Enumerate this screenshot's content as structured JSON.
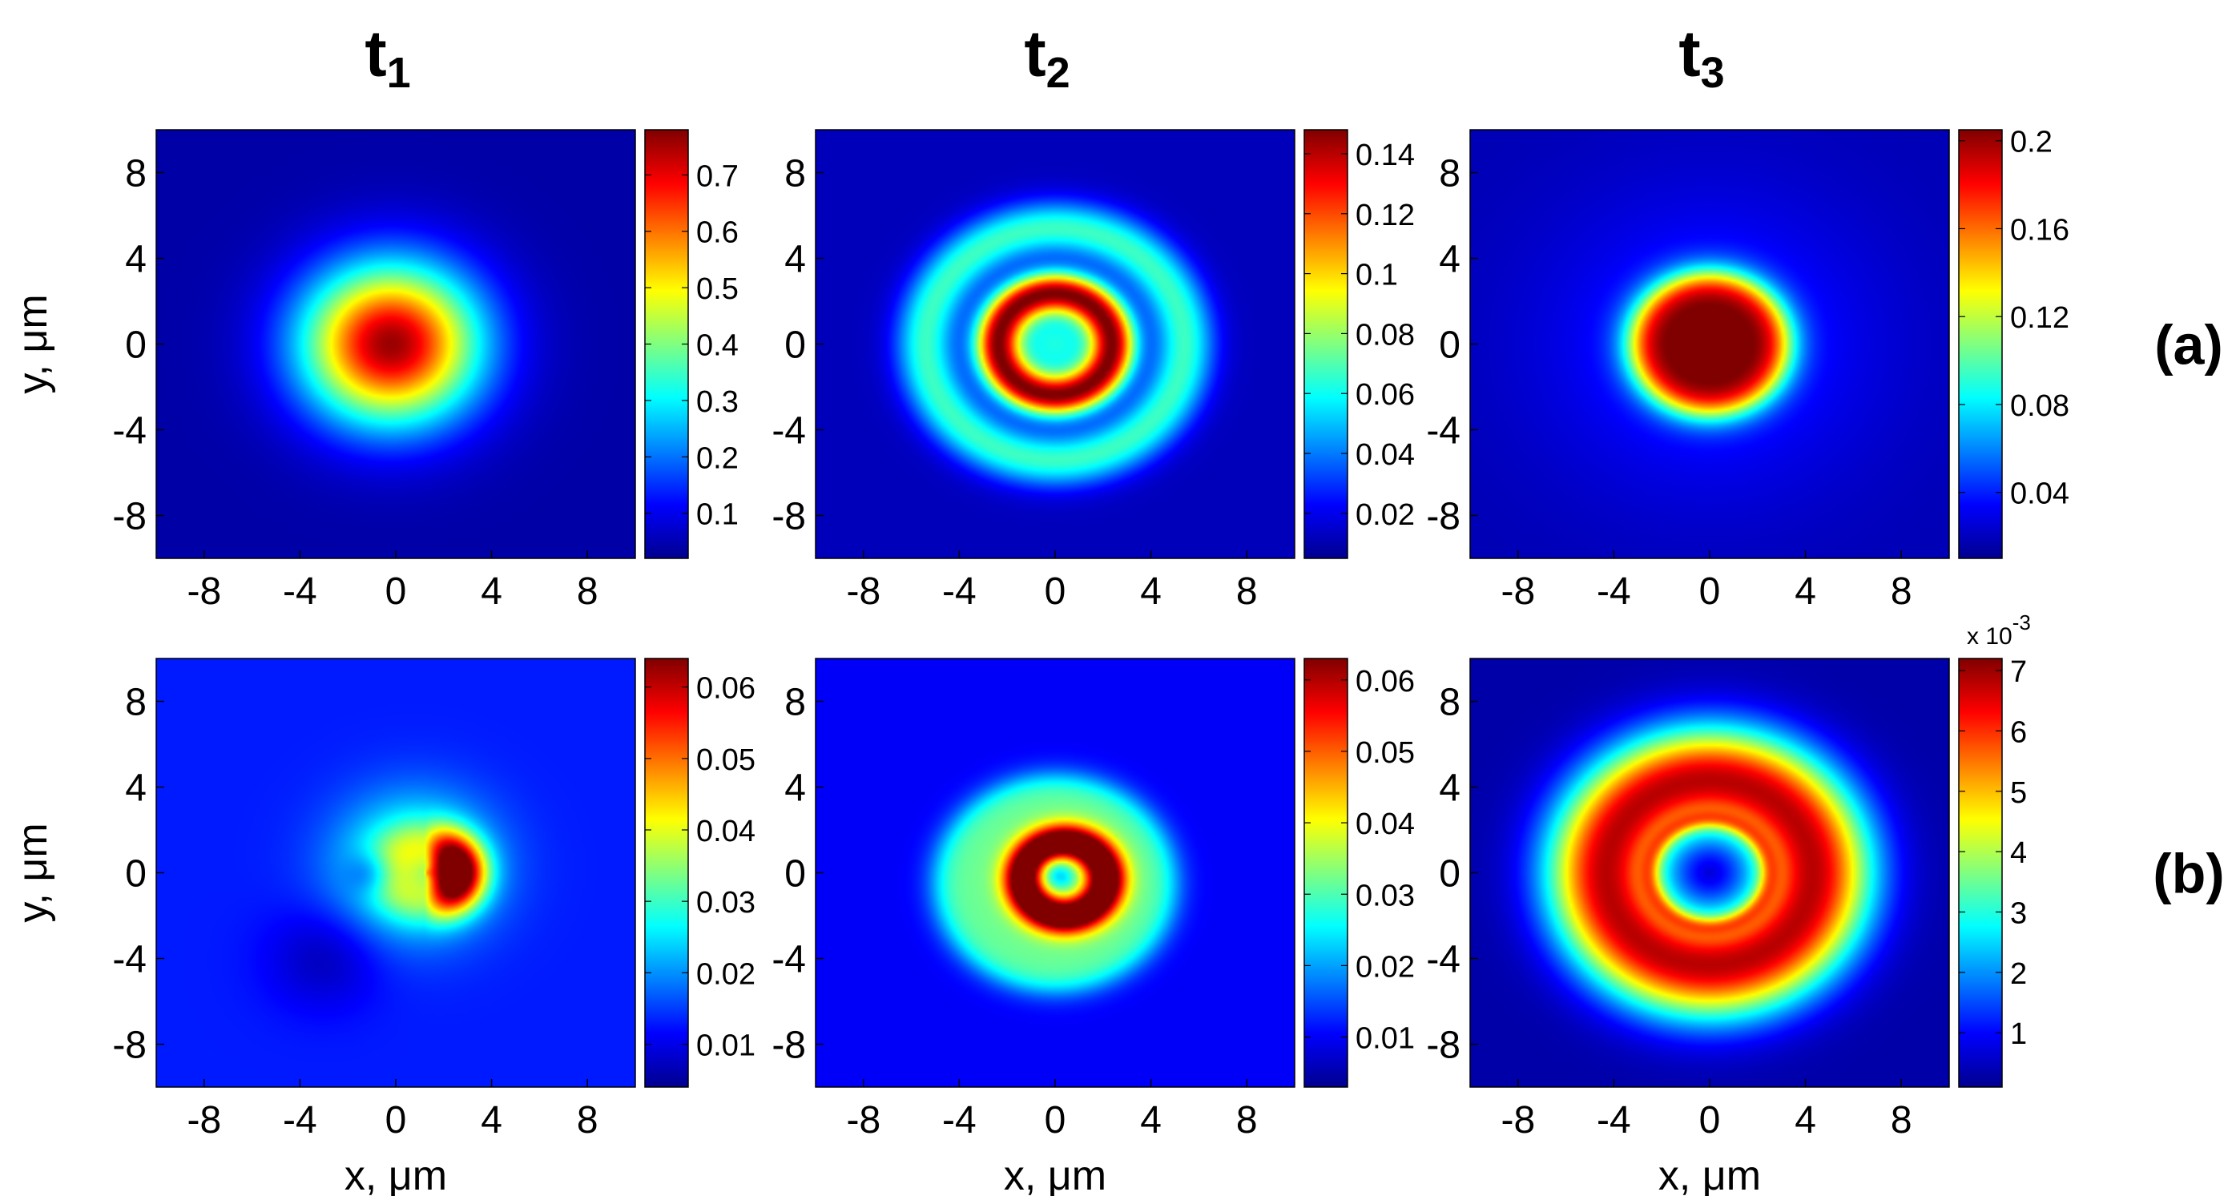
{
  "figure": {
    "column_titles": [
      {
        "base": "t",
        "sub": "1"
      },
      {
        "base": "t",
        "sub": "2"
      },
      {
        "base": "t",
        "sub": "3"
      }
    ],
    "row_labels": [
      "(a)",
      "(b)"
    ],
    "ylabel": "y, μm",
    "xlabel": "x, μm",
    "colorscale": [
      "#00008f",
      "#0000ff",
      "#0080ff",
      "#00ffff",
      "#80ff80",
      "#ffff00",
      "#ff8000",
      "#ff0000",
      "#800000"
    ]
  },
  "chart_data": [
    {
      "type": "heatmap",
      "row": "(a)",
      "column": "t1",
      "xlim": [
        -10,
        10
      ],
      "ylim": [
        -10,
        10
      ],
      "xticks": [
        -8,
        -4,
        0,
        4,
        8
      ],
      "yticks": [
        8,
        4,
        0,
        -4,
        -8
      ],
      "xticklabels": [
        "-8",
        "-4",
        "0",
        "4",
        "8"
      ],
      "yticklabels": [
        "8",
        "4",
        "0",
        "-4",
        "-8"
      ],
      "colorbar": {
        "min": 0.02,
        "max": 0.78,
        "ticks": [
          0.1,
          0.2,
          0.3,
          0.4,
          0.5,
          0.6,
          0.7
        ],
        "labels": [
          "0.1",
          "0.2",
          "0.3",
          "0.4",
          "0.5",
          "0.6",
          "0.7"
        ],
        "multiplier": ""
      },
      "background": 0.04,
      "features": [
        {
          "shape": "gaussian",
          "cx": -0.2,
          "cy": 0,
          "sigma": 2.6,
          "amp": 0.72
        }
      ],
      "show_xticklabels": true,
      "show_xlabel": false,
      "show_ylabel": true
    },
    {
      "type": "heatmap",
      "row": "(a)",
      "column": "t2",
      "xlim": [
        -10,
        10
      ],
      "ylim": [
        -10,
        10
      ],
      "xticks": [
        -8,
        -4,
        0,
        4,
        8
      ],
      "yticks": [
        8,
        4,
        0,
        -4,
        -8
      ],
      "xticklabels": [
        "-8",
        "-4",
        "0",
        "4",
        "8"
      ],
      "yticklabels": [
        "8",
        "4",
        "0",
        "-4",
        "-8"
      ],
      "colorbar": {
        "min": 0.005,
        "max": 0.148,
        "ticks": [
          0.02,
          0.04,
          0.06,
          0.08,
          0.1,
          0.12,
          0.14
        ],
        "labels": [
          "0.02",
          "0.04",
          "0.06",
          "0.08",
          "0.1",
          "0.12",
          "0.14"
        ],
        "multiplier": ""
      },
      "background": 0.012,
      "features": [
        {
          "shape": "gaussian",
          "cx": 0,
          "cy": 0,
          "sigma": 1.2,
          "amp": 0.05
        },
        {
          "shape": "ring",
          "cx": 0,
          "cy": 0,
          "radius": 2.4,
          "width": 0.7,
          "amp": 0.13
        },
        {
          "shape": "ring",
          "cx": 0,
          "cy": 0,
          "radius": 5.4,
          "width": 0.9,
          "amp": 0.055
        }
      ],
      "show_xticklabels": true,
      "show_xlabel": false,
      "show_ylabel": false
    },
    {
      "type": "heatmap",
      "row": "(a)",
      "column": "t3",
      "xlim": [
        -10,
        10
      ],
      "ylim": [
        -10,
        10
      ],
      "xticks": [
        -8,
        -4,
        0,
        4,
        8
      ],
      "yticks": [
        8,
        4,
        0,
        -4,
        -8
      ],
      "xticklabels": [
        "-8",
        "-4",
        "0",
        "4",
        "8"
      ],
      "yticklabels": [
        "8",
        "4",
        "0",
        "-4",
        "-8"
      ],
      "colorbar": {
        "min": 0.01,
        "max": 0.205,
        "ticks": [
          0.04,
          0.08,
          0.12,
          0.16,
          0.2
        ],
        "labels": [
          "0.04",
          "0.08",
          "0.12",
          "0.16",
          "0.2"
        ],
        "multiplier": ""
      },
      "background": 0.018,
      "features": [
        {
          "shape": "disk",
          "cx": 0,
          "cy": 0,
          "radius": 3.2,
          "edge": 1.2,
          "amp": 0.17
        },
        {
          "shape": "gaussian",
          "cx": 0,
          "cy": 0,
          "sigma": 0.45,
          "amp": 0.02
        },
        {
          "shape": "gaussian",
          "cx": 0,
          "cy": 0,
          "sigma": 4.8,
          "amp": 0.025
        }
      ],
      "show_xticklabels": true,
      "show_xlabel": false,
      "show_ylabel": false
    },
    {
      "type": "heatmap",
      "row": "(b)",
      "column": "t1",
      "xlim": [
        -10,
        10
      ],
      "ylim": [
        -10,
        10
      ],
      "xticks": [
        -8,
        -4,
        0,
        4,
        8
      ],
      "yticks": [
        8,
        4,
        0,
        -4,
        -8
      ],
      "xticklabels": [
        "-8",
        "-4",
        "0",
        "4",
        "8"
      ],
      "yticklabels": [
        "8",
        "4",
        "0",
        "-4",
        "-8"
      ],
      "colorbar": {
        "min": 0.004,
        "max": 0.064,
        "ticks": [
          0.01,
          0.02,
          0.03,
          0.04,
          0.05,
          0.06
        ],
        "labels": [
          "0.01",
          "0.02",
          "0.03",
          "0.04",
          "0.05",
          "0.06"
        ],
        "multiplier": ""
      },
      "background": 0.013,
      "features": [
        {
          "shape": "gaussian",
          "cx": 0.8,
          "cy": 0.3,
          "sigma": 2.2,
          "amp": 0.022
        },
        {
          "shape": "crescent",
          "cx": 1.2,
          "cy": 0,
          "radius": 1.4,
          "width": 0.8,
          "amp": 0.05
        },
        {
          "shape": "gaussian",
          "cx": -1.0,
          "cy": 0,
          "sigma": 0.7,
          "amp": -0.01
        },
        {
          "shape": "gaussian",
          "cx": -3.0,
          "cy": -4.0,
          "sigma": 1.6,
          "amp": -0.006
        }
      ],
      "show_xticklabels": true,
      "show_xlabel": true,
      "show_ylabel": true
    },
    {
      "type": "heatmap",
      "row": "(b)",
      "column": "t2",
      "xlim": [
        -10,
        10
      ],
      "ylim": [
        -10,
        10
      ],
      "xticks": [
        -8,
        -4,
        0,
        4,
        8
      ],
      "yticks": [
        8,
        4,
        0,
        -4,
        -8
      ],
      "xticklabels": [
        "-8",
        "-4",
        "0",
        "4",
        "8"
      ],
      "yticklabels": [
        "8",
        "4",
        "0",
        "-4",
        "-8"
      ],
      "colorbar": {
        "min": 0.003,
        "max": 0.063,
        "ticks": [
          0.01,
          0.02,
          0.03,
          0.04,
          0.05,
          0.06
        ],
        "labels": [
          "0.01",
          "0.02",
          "0.03",
          "0.04",
          "0.05",
          "0.06"
        ],
        "multiplier": ""
      },
      "background": 0.01,
      "features": [
        {
          "shape": "disk",
          "cx": 0,
          "cy": -0.5,
          "radius": 5.0,
          "edge": 1.0,
          "amp": 0.022
        },
        {
          "shape": "ring",
          "cx": 0.4,
          "cy": -0.3,
          "radius": 1.7,
          "width": 0.6,
          "amp": 0.045
        },
        {
          "shape": "gaussian",
          "cx": 0,
          "cy": 0,
          "sigma": 0.6,
          "amp": -0.012
        }
      ],
      "show_xticklabels": true,
      "show_xlabel": true,
      "show_ylabel": false
    },
    {
      "type": "heatmap",
      "row": "(b)",
      "column": "t3",
      "xlim": [
        -10,
        10
      ],
      "ylim": [
        -10,
        10
      ],
      "xticks": [
        -8,
        -4,
        0,
        4,
        8
      ],
      "yticks": [
        8,
        4,
        0,
        -4,
        -8
      ],
      "xticklabels": [
        "-8",
        "-4",
        "0",
        "4",
        "8"
      ],
      "yticklabels": [
        "8",
        "4",
        "0",
        "-4",
        "-8"
      ],
      "colorbar": {
        "min": 0.1,
        "max": 7.2,
        "ticks": [
          1,
          2,
          3,
          4,
          5,
          6,
          7
        ],
        "labels": [
          "1",
          "2",
          "3",
          "4",
          "5",
          "6",
          "7"
        ],
        "multiplier": "x 10^-3"
      },
      "background": 0.3,
      "features": [
        {
          "shape": "ring",
          "cx": 0,
          "cy": 0,
          "radius": 4.3,
          "width": 1.8,
          "amp": 6.5
        },
        {
          "shape": "ring",
          "cx": 0,
          "cy": 0,
          "radius": 2.5,
          "width": 0.3,
          "amp": 1.5
        }
      ],
      "show_xticklabels": true,
      "show_xlabel": true,
      "show_ylabel": false
    }
  ]
}
